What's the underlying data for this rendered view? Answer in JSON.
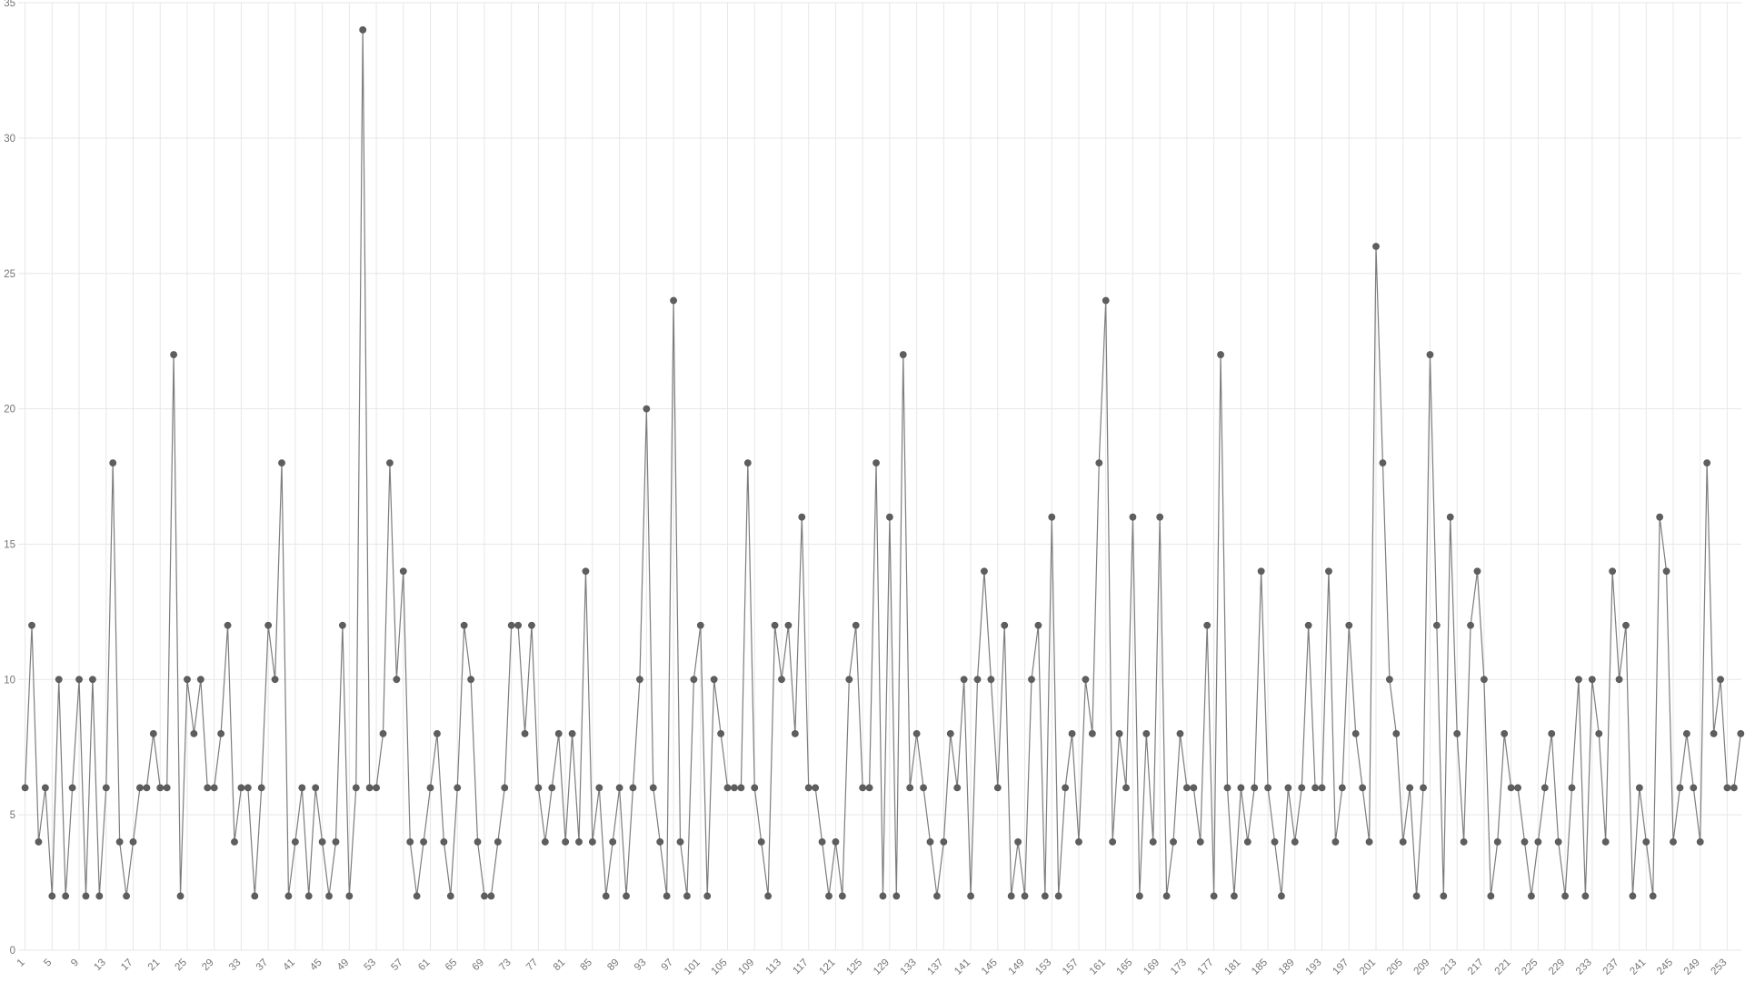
{
  "chart_data": {
    "type": "line",
    "title": "",
    "xlabel": "",
    "ylabel": "",
    "legend_position": "none",
    "grid": true,
    "ylim": [
      0,
      35
    ],
    "y_ticks": [
      "0",
      "5",
      "10",
      "15",
      "20",
      "25",
      "30",
      "35"
    ],
    "x_tick_step": 4,
    "x_first_label": 1,
    "x_last_label": 253,
    "x_tick_labels": [
      "1",
      "5",
      "9",
      "13",
      "17",
      "21",
      "25",
      "29",
      "33",
      "37",
      "41",
      "45",
      "49",
      "53",
      "57",
      "61",
      "65",
      "69",
      "73",
      "77",
      "81",
      "85",
      "89",
      "93",
      "97",
      "101",
      "105",
      "109",
      "113",
      "117",
      "121",
      "125",
      "129",
      "133",
      "137",
      "141",
      "145",
      "149",
      "153",
      "157",
      "161",
      "165",
      "169",
      "173",
      "177",
      "181",
      "185",
      "189",
      "193",
      "197",
      "201",
      "205",
      "209",
      "213",
      "217",
      "221",
      "225",
      "229",
      "233",
      "237",
      "241",
      "245",
      "249",
      "253"
    ],
    "x": [
      1,
      2,
      3,
      4,
      5,
      6,
      7,
      8,
      9,
      10,
      11,
      12,
      13,
      14,
      15,
      16,
      17,
      18,
      19,
      20,
      21,
      22,
      23,
      24,
      25,
      26,
      27,
      28,
      29,
      30,
      31,
      32,
      33,
      34,
      35,
      36,
      37,
      38,
      39,
      40,
      41,
      42,
      43,
      44,
      45,
      46,
      47,
      48,
      49,
      50,
      51,
      52,
      53,
      54,
      55,
      56,
      57,
      58,
      59,
      60,
      61,
      62,
      63,
      64,
      65,
      66,
      67,
      68,
      69,
      70,
      71,
      72,
      73,
      74,
      75,
      76,
      77,
      78,
      79,
      80,
      81,
      82,
      83,
      84,
      85,
      86,
      87,
      88,
      89,
      90,
      91,
      92,
      93,
      94,
      95,
      96,
      97,
      98,
      99,
      100,
      101,
      102,
      103,
      104,
      105,
      106,
      107,
      108,
      109,
      110,
      111,
      112,
      113,
      114,
      115,
      116,
      117,
      118,
      119,
      120,
      121,
      122,
      123,
      124,
      125,
      126,
      127,
      128,
      129,
      130,
      131,
      132,
      133,
      134,
      135,
      136,
      137,
      138,
      139,
      140,
      141,
      142,
      143,
      144,
      145,
      146,
      147,
      148,
      149,
      150,
      151,
      152,
      153,
      154,
      155,
      156,
      157,
      158,
      159,
      160,
      161,
      162,
      163,
      164,
      165,
      166,
      167,
      168,
      169,
      170,
      171,
      172,
      173,
      174,
      175,
      176,
      177,
      178,
      179,
      180,
      181,
      182,
      183,
      184,
      185,
      186,
      187,
      188,
      189,
      190,
      191,
      192,
      193,
      194,
      195,
      196,
      197,
      198,
      199,
      200,
      201,
      202,
      203,
      204,
      205,
      206,
      207,
      208,
      209,
      210,
      211,
      212,
      213,
      214,
      215,
      216,
      217,
      218,
      219,
      220,
      221,
      222,
      223,
      224,
      225,
      226,
      227,
      228,
      229,
      230,
      231,
      232,
      233,
      234,
      235,
      236,
      237,
      238,
      239,
      240,
      241,
      242,
      243,
      244,
      245,
      246,
      247,
      248,
      249,
      250,
      251,
      252,
      253,
      254,
      255
    ],
    "values": [
      6,
      12,
      4,
      6,
      2,
      10,
      2,
      6,
      10,
      2,
      10,
      2,
      6,
      18,
      4,
      2,
      4,
      6,
      6,
      8,
      6,
      6,
      22,
      2,
      10,
      8,
      10,
      6,
      6,
      8,
      12,
      4,
      6,
      6,
      2,
      6,
      12,
      10,
      18,
      2,
      4,
      6,
      2,
      6,
      4,
      2,
      4,
      12,
      2,
      6,
      34,
      6,
      6,
      8,
      18,
      10,
      14,
      4,
      2,
      4,
      6,
      8,
      4,
      2,
      6,
      12,
      10,
      4,
      2,
      2,
      4,
      6,
      12,
      12,
      8,
      12,
      6,
      4,
      6,
      8,
      4,
      8,
      4,
      14,
      4,
      6,
      2,
      4,
      6,
      2,
      6,
      10,
      20,
      6,
      4,
      2,
      24,
      4,
      2,
      10,
      12,
      2,
      10,
      8,
      6,
      6,
      6,
      18,
      6,
      4,
      2,
      12,
      10,
      12,
      8,
      16,
      6,
      6,
      4,
      2,
      4,
      2,
      10,
      12,
      6,
      6,
      18,
      2,
      16,
      2,
      22,
      6,
      8,
      6,
      4,
      2,
      4,
      8,
      6,
      10,
      2,
      10,
      14,
      10,
      6,
      12,
      2,
      4,
      2,
      10,
      12,
      2,
      16,
      2,
      6,
      8,
      4,
      10,
      8,
      18,
      24,
      4,
      8,
      6,
      16,
      2,
      8,
      4,
      16,
      2,
      4,
      8,
      6,
      6,
      4,
      12,
      2,
      22,
      6,
      2,
      6,
      4,
      6,
      14,
      6,
      4,
      2,
      6,
      4,
      6,
      12,
      6,
      6,
      14,
      4,
      6,
      12,
      8,
      6,
      4,
      26,
      18,
      10,
      8,
      4,
      6,
      2,
      6,
      22,
      12,
      2,
      16,
      8,
      4,
      12,
      14,
      10,
      2,
      4,
      8,
      6,
      6,
      4,
      2,
      4,
      6,
      8,
      4,
      2,
      6,
      10,
      2,
      10,
      8,
      4,
      14,
      10,
      12,
      2,
      6,
      4,
      2,
      16,
      14,
      4,
      6,
      8,
      6,
      4,
      18,
      8,
      10,
      6,
      6,
      8
    ],
    "colors": {
      "line": "#7d7d7d",
      "point_fill": "#5e5e5e",
      "grid": "#e7e7e7",
      "tick_label": "#757575",
      "background": "#ffffff"
    }
  }
}
